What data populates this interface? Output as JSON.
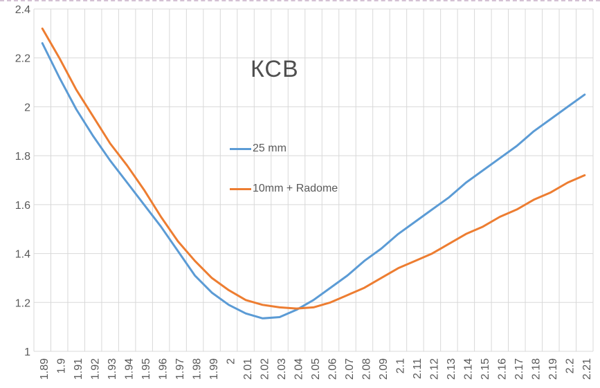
{
  "chart_data": {
    "type": "line",
    "title": "КСВ",
    "categories": [
      "1.89",
      "1.9",
      "1.91",
      "1.92",
      "1.93",
      "1.94",
      "1.95",
      "1.96",
      "1.97",
      "1.98",
      "1.99",
      "2",
      "2.01",
      "2.02",
      "2.03",
      "2.04",
      "2.05",
      "2.06",
      "2.07",
      "2.08",
      "2.09",
      "2.1",
      "2.11",
      "2.12",
      "2.13",
      "2.14",
      "2.15",
      "2.16",
      "2.17",
      "2.18",
      "2.19",
      "2.2",
      "2.21"
    ],
    "series": [
      {
        "name": "25 mm",
        "color": "#5B9BD5",
        "values": [
          2.26,
          2.12,
          1.99,
          1.88,
          1.78,
          1.69,
          1.6,
          1.51,
          1.41,
          1.31,
          1.24,
          1.19,
          1.155,
          1.135,
          1.14,
          1.17,
          1.21,
          1.26,
          1.31,
          1.37,
          1.42,
          1.48,
          1.53,
          1.58,
          1.63,
          1.69,
          1.74,
          1.79,
          1.84,
          1.9,
          1.95,
          2.0,
          2.05
        ]
      },
      {
        "name": "10mm + Radome",
        "color": "#ED7D31",
        "values": [
          2.32,
          2.2,
          2.07,
          1.96,
          1.85,
          1.76,
          1.66,
          1.55,
          1.45,
          1.37,
          1.3,
          1.25,
          1.21,
          1.19,
          1.18,
          1.175,
          1.18,
          1.2,
          1.23,
          1.26,
          1.3,
          1.34,
          1.37,
          1.4,
          1.44,
          1.48,
          1.51,
          1.55,
          1.58,
          1.62,
          1.65,
          1.69,
          1.72
        ]
      }
    ],
    "xlabel": "",
    "ylabel": "",
    "ylim": [
      1,
      2.4
    ],
    "yticks": [
      1,
      1.2,
      1.4,
      1.6,
      1.8,
      2,
      2.2,
      2.4
    ],
    "ytick_labels": [
      "1",
      "1.2",
      "1.4",
      "1.6",
      "1.8",
      "2",
      "2.2",
      "2.4"
    ],
    "x_tick_rotation_deg": -90,
    "grid": true,
    "legend_position": "overlay-center-left",
    "gridline_color": "#D8D8D8",
    "label_color": "#595959",
    "title_color": "#4f4f4f",
    "background_color": "#FFFFFF",
    "page_break_line_color": "#D3C0D3"
  }
}
